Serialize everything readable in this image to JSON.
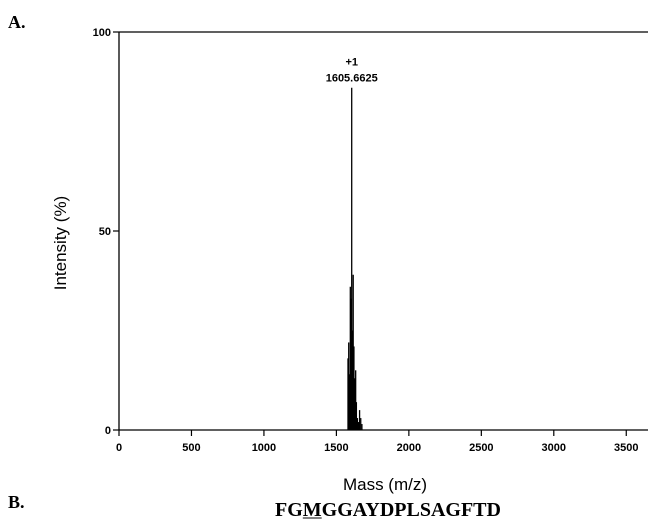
{
  "panel_a_label": "A.",
  "panel_b_label": "B.",
  "sequence": "FGMGGAYDPLSAGFTD",
  "sequence_underlined_char": "M",
  "chart_data": {
    "type": "bar",
    "xlabel": "Mass (m/z)",
    "ylabel": "Intensity (%)",
    "xlim": [
      0,
      3650
    ],
    "ylim": [
      0,
      100
    ],
    "x_ticks": [
      0,
      500,
      1000,
      1500,
      2000,
      2500,
      3000,
      3500
    ],
    "y_ticks": [
      0,
      50,
      100
    ],
    "grid": false,
    "peaks": [
      {
        "mz": 1580.0,
        "intensity": 18
      },
      {
        "mz": 1585.0,
        "intensity": 22
      },
      {
        "mz": 1590.0,
        "intensity": 14
      },
      {
        "mz": 1596.0,
        "intensity": 36
      },
      {
        "mz": 1600.0,
        "intensity": 33
      },
      {
        "mz": 1605.6625,
        "intensity": 86
      },
      {
        "mz": 1611.0,
        "intensity": 25
      },
      {
        "mz": 1616.0,
        "intensity": 39
      },
      {
        "mz": 1621.0,
        "intensity": 21
      },
      {
        "mz": 1627.0,
        "intensity": 13
      },
      {
        "mz": 1633.0,
        "intensity": 15
      },
      {
        "mz": 1638.0,
        "intensity": 7
      },
      {
        "mz": 1645.0,
        "intensity": 3
      },
      {
        "mz": 1652.0,
        "intensity": 2
      },
      {
        "mz": 1660.0,
        "intensity": 5
      },
      {
        "mz": 1668.0,
        "intensity": 3
      },
      {
        "mz": 1676.0,
        "intensity": 1.5
      }
    ],
    "annotations": [
      {
        "mz": 1605.6625,
        "intensity": 86,
        "lines": [
          "+1",
          "1605.6625"
        ]
      }
    ]
  }
}
